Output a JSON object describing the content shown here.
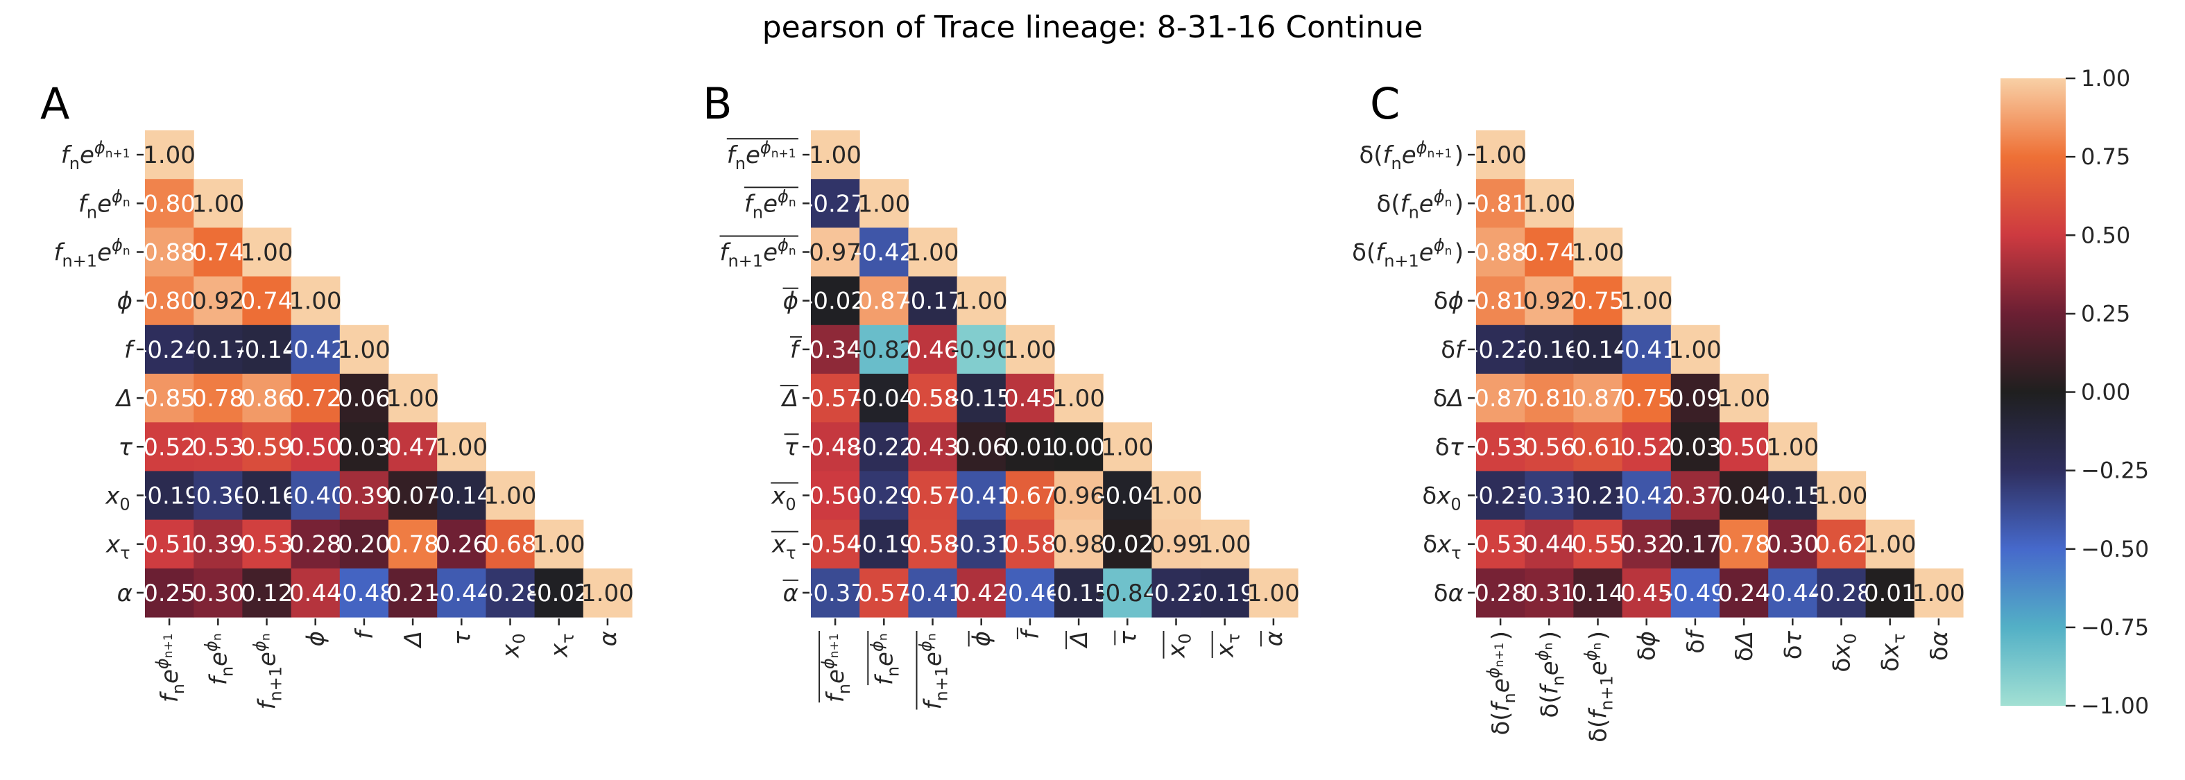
{
  "title": "pearson of Trace lineage: 8-31-16 Continue",
  "colors": {
    "cmap_stops": [
      [
        "-1.00",
        "#a2e0d3"
      ],
      [
        "-0.75",
        "#53b0c6"
      ],
      [
        "-0.50",
        "#4669cb"
      ],
      [
        "-0.25",
        "#2f2f5f"
      ],
      [
        "0.00",
        "#1f1f1f"
      ],
      [
        "0.25",
        "#6b1f33"
      ],
      [
        "0.50",
        "#cd3a40"
      ],
      [
        "0.75",
        "#ee7036"
      ],
      [
        "1.00",
        "#f8d0a6"
      ]
    ],
    "light_text": "#ffffff",
    "dark_text": "#262626"
  },
  "colorbar": {
    "min": -1.0,
    "max": 1.0,
    "ticks": [
      "1.00",
      "0.75",
      "0.50",
      "0.25",
      "0.00",
      "−0.25",
      "−0.50",
      "−0.75",
      "−1.00"
    ]
  },
  "chart_data": [
    {
      "type": "heatmap",
      "panel": "A",
      "labels": [
        {
          "s": "f",
          "sub": "n",
          "post": "e",
          "sup": "ϕ",
          "supsub": "n+1"
        },
        {
          "s": "f",
          "sub": "n",
          "post": "e",
          "sup": "ϕ",
          "supsub": "n"
        },
        {
          "s": "f",
          "sub": "n+1",
          "post": "e",
          "sup": "ϕ",
          "supsub": "n"
        },
        {
          "s": "ϕ"
        },
        {
          "s": "f"
        },
        {
          "s": "Δ"
        },
        {
          "s": "τ"
        },
        {
          "s": "x",
          "sub": "0"
        },
        {
          "s": "x",
          "sub": "τ"
        },
        {
          "s": "α"
        }
      ],
      "matrix": [
        [
          1.0
        ],
        [
          0.8,
          1.0
        ],
        [
          0.88,
          0.74,
          1.0
        ],
        [
          0.8,
          0.92,
          0.74,
          1.0
        ],
        [
          -0.24,
          -0.17,
          -0.14,
          -0.42,
          1.0
        ],
        [
          0.85,
          0.78,
          0.86,
          0.72,
          0.06,
          1.0
        ],
        [
          0.52,
          0.53,
          0.59,
          0.5,
          0.03,
          0.47,
          1.0
        ],
        [
          -0.19,
          -0.3,
          -0.16,
          -0.4,
          0.39,
          0.07,
          -0.14,
          1.0
        ],
        [
          0.51,
          0.39,
          0.53,
          0.28,
          0.2,
          0.78,
          0.26,
          0.68,
          1.0
        ],
        [
          0.25,
          0.3,
          0.12,
          0.44,
          -0.48,
          0.21,
          -0.44,
          -0.28,
          -0.02,
          1.0
        ]
      ],
      "text": [
        [
          "1.00"
        ],
        [
          "0.80",
          "1.00"
        ],
        [
          "0.88",
          "0.74",
          "1.00"
        ],
        [
          "0.80",
          "0.92",
          "0.74",
          "1.00"
        ],
        [
          "-0.24",
          "-0.17",
          "-0.14",
          "-0.42",
          "1.00"
        ],
        [
          "0.85",
          "0.78",
          "0.86",
          "0.72",
          "0.06",
          "1.00"
        ],
        [
          "0.52",
          "0.53",
          "0.59",
          "0.50",
          "0.03",
          "0.47",
          "1.00"
        ],
        [
          "-0.19",
          "-0.30",
          "-0.16",
          "-0.40",
          "0.39",
          "0.07",
          "-0.14",
          "1.00"
        ],
        [
          "0.51",
          "0.39",
          "0.53",
          "0.28",
          "0.20",
          "0.78",
          "0.26",
          "0.68",
          "1.00"
        ],
        [
          "0.25",
          "0.30",
          "0.12",
          "0.44",
          "-0.48",
          "0.21",
          "-0.44",
          "-0.28",
          "-0.02",
          "1.00"
        ]
      ]
    },
    {
      "type": "heatmap",
      "panel": "B",
      "labels": [
        {
          "s": "f",
          "sub": "n",
          "post": "e",
          "sup": "ϕ",
          "supsub": "n+1",
          "bar": true
        },
        {
          "s": "f",
          "sub": "n",
          "post": "e",
          "sup": "ϕ",
          "supsub": "n",
          "bar": true
        },
        {
          "s": "f",
          "sub": "n+1",
          "post": "e",
          "sup": "ϕ",
          "supsub": "n",
          "bar": true
        },
        {
          "s": "ϕ",
          "bar": true
        },
        {
          "s": "f",
          "bar": true
        },
        {
          "s": "Δ",
          "bar": true
        },
        {
          "s": "τ",
          "bar": true
        },
        {
          "s": "x",
          "sub": "0",
          "bar": true
        },
        {
          "s": "x",
          "sub": "τ",
          "bar": true
        },
        {
          "s": "α",
          "bar": true
        }
      ],
      "matrix": [
        [
          1.0
        ],
        [
          -0.27,
          1.0
        ],
        [
          0.97,
          -0.42,
          1.0
        ],
        [
          -0.02,
          0.87,
          -0.17,
          1.0
        ],
        [
          0.34,
          -0.82,
          0.46,
          -0.9,
          1.0
        ],
        [
          0.57,
          -0.04,
          0.58,
          -0.15,
          0.45,
          1.0
        ],
        [
          0.48,
          -0.22,
          0.43,
          0.06,
          0.01,
          0.0,
          1.0
        ],
        [
          0.5,
          -0.29,
          0.57,
          -0.41,
          0.67,
          0.96,
          -0.04,
          1.0
        ],
        [
          0.54,
          -0.19,
          0.58,
          -0.31,
          0.58,
          0.98,
          0.02,
          0.99,
          1.0
        ],
        [
          -0.37,
          0.57,
          -0.41,
          0.42,
          -0.46,
          -0.15,
          -0.84,
          -0.22,
          -0.19,
          1.0
        ]
      ],
      "text": [
        [
          "1.00"
        ],
        [
          "-0.27",
          "1.00"
        ],
        [
          "0.97",
          "-0.42",
          "1.00"
        ],
        [
          "-0.02",
          "0.87",
          "-0.17",
          "1.00"
        ],
        [
          "0.34",
          "-0.82",
          "0.46",
          "-0.90",
          "1.00"
        ],
        [
          "0.57",
          "-0.04",
          "0.58",
          "-0.15",
          "0.45",
          "1.00"
        ],
        [
          "0.48",
          "-0.22",
          "0.43",
          "0.06",
          "0.01",
          "0.00",
          "1.00"
        ],
        [
          "0.50",
          "-0.29",
          "0.57",
          "-0.41",
          "0.67",
          "0.96",
          "-0.04",
          "1.00"
        ],
        [
          "0.54",
          "-0.19",
          "0.58",
          "-0.31",
          "0.58",
          "0.98",
          "0.02",
          "0.99",
          "1.00"
        ],
        [
          "-0.37",
          "0.57",
          "-0.41",
          "0.42",
          "-0.46",
          "-0.15",
          "-0.84",
          "-0.22",
          "-0.19",
          "1.00"
        ]
      ]
    },
    {
      "type": "heatmap",
      "panel": "C",
      "labels": [
        {
          "pre": "δ(",
          "s": "f",
          "sub": "n",
          "post": "e",
          "sup": "ϕ",
          "supsub": "n+1",
          "close": ")"
        },
        {
          "pre": "δ(",
          "s": "f",
          "sub": "n",
          "post": "e",
          "sup": "ϕ",
          "supsub": "n",
          "close": ")"
        },
        {
          "pre": "δ(",
          "s": "f",
          "sub": "n+1",
          "post": "e",
          "sup": "ϕ",
          "supsub": "n",
          "close": ")"
        },
        {
          "pre": "δ",
          "s": "ϕ"
        },
        {
          "pre": "δ",
          "s": "f"
        },
        {
          "pre": "δ",
          "s": "Δ"
        },
        {
          "pre": "δ",
          "s": "τ"
        },
        {
          "pre": "δ",
          "s": "x",
          "sub": "0"
        },
        {
          "pre": "δ",
          "s": "x",
          "sub": "τ"
        },
        {
          "pre": "δ",
          "s": "α"
        }
      ],
      "matrix": [
        [
          1.0
        ],
        [
          0.81,
          1.0
        ],
        [
          0.88,
          0.74,
          1.0
        ],
        [
          0.81,
          0.92,
          0.75,
          1.0
        ],
        [
          -0.22,
          -0.16,
          -0.14,
          -0.41,
          1.0
        ],
        [
          0.87,
          0.81,
          0.87,
          0.75,
          0.09,
          1.0
        ],
        [
          0.53,
          0.56,
          0.61,
          0.52,
          0.03,
          0.5,
          1.0
        ],
        [
          -0.23,
          -0.31,
          -0.21,
          -0.42,
          0.37,
          0.04,
          -0.15,
          1.0
        ],
        [
          0.53,
          0.44,
          0.55,
          0.32,
          0.17,
          0.78,
          0.3,
          0.62,
          1.0
        ],
        [
          0.28,
          0.31,
          0.14,
          0.45,
          -0.49,
          0.24,
          -0.44,
          -0.28,
          0.01,
          1.0
        ]
      ],
      "text": [
        [
          "1.00"
        ],
        [
          "0.81",
          "1.00"
        ],
        [
          "0.88",
          "0.74",
          "1.00"
        ],
        [
          "0.81",
          "0.92",
          "0.75",
          "1.00"
        ],
        [
          "-0.22",
          "-0.16",
          "-0.14",
          "-0.41",
          "1.00"
        ],
        [
          "0.87",
          "0.81",
          "0.87",
          "0.75",
          "0.09",
          "1.00"
        ],
        [
          "0.53",
          "0.56",
          "0.61",
          "0.52",
          "0.03",
          "0.50",
          "1.00"
        ],
        [
          "-0.23",
          "-0.31",
          "-0.21",
          "-0.42",
          "0.37",
          "0.04",
          "-0.15",
          "1.00"
        ],
        [
          "0.53",
          "0.44",
          "0.55",
          "0.32",
          "0.17",
          "0.78",
          "0.30",
          "0.62",
          "1.00"
        ],
        [
          "0.28",
          "0.31",
          "0.14",
          "0.45",
          "-0.49",
          "0.24",
          "-0.44",
          "-0.28",
          "0.01",
          "1.00"
        ]
      ]
    }
  ]
}
